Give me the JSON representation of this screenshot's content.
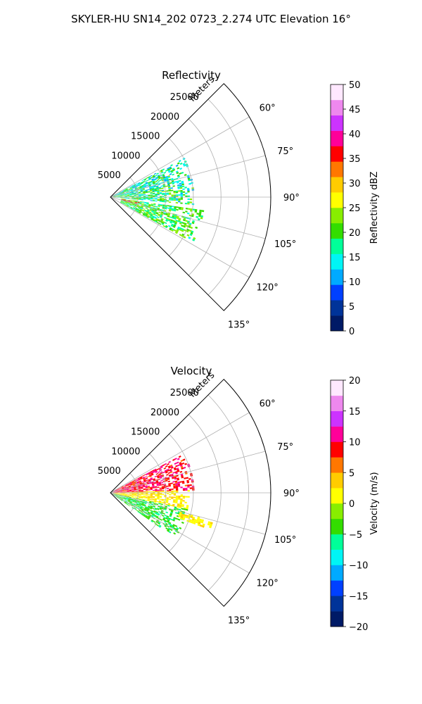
{
  "figure": {
    "suptitle": "SKYLER-HU  SN14_202  0723_2.274 UTC Elevation 16°"
  },
  "chart_data": [
    {
      "type": "heatmap",
      "subtype": "polar-sector-ppi",
      "title": "Reflectivity",
      "radial_axis_label": "Meters",
      "radial_ticks": [
        5000,
        10000,
        15000,
        20000,
        25000
      ],
      "radial_tick_labels": [
        "5000",
        "10000",
        "15000",
        "20000",
        "25000"
      ],
      "rmax": 29000,
      "theta_range_deg": [
        45,
        135
      ],
      "theta_ticks_deg": [
        60,
        75,
        90,
        105,
        120,
        135
      ],
      "theta_tick_labels": [
        "60°",
        "75°",
        "90°",
        "105°",
        "120°",
        "135°"
      ],
      "grid": true,
      "colorbar": {
        "label": "Reflectivity dBZ",
        "min": 0,
        "max": 50,
        "ticks": [
          0,
          5,
          10,
          15,
          20,
          25,
          30,
          35,
          40,
          45,
          50
        ],
        "tick_labels": [
          "0",
          "5",
          "10",
          "15",
          "20",
          "25",
          "30",
          "35",
          "40",
          "45",
          "50"
        ],
        "colormap": "NWS-reflectivity",
        "colors": [
          "#001a66",
          "#003399",
          "#0040ff",
          "#00aaff",
          "#00f5f5",
          "#00ff99",
          "#33dd00",
          "#88ee00",
          "#ffff00",
          "#ffcc00",
          "#ff7700",
          "#ff0000",
          "#ff0099",
          "#cc33ff",
          "#ee88ee",
          "#ffe8ff"
        ]
      },
      "field_summary": [
        {
          "sector_deg": [
            62,
            80
          ],
          "range_m": [
            500,
            15000
          ],
          "value_range": [
            10,
            22
          ]
        },
        {
          "sector_deg": [
            80,
            95
          ],
          "range_m": [
            500,
            15000
          ],
          "value_range": [
            12,
            25
          ]
        },
        {
          "sector_deg": [
            98,
            118
          ],
          "range_m": [
            2000,
            17000
          ],
          "value_range": [
            15,
            25
          ]
        },
        {
          "sector_deg": [
            100,
            104
          ],
          "range_m": [
            2000,
            5000
          ],
          "value_range": [
            33,
            38
          ]
        }
      ]
    },
    {
      "type": "heatmap",
      "subtype": "polar-sector-ppi",
      "title": "Velocity",
      "radial_axis_label": "Meters",
      "radial_ticks": [
        5000,
        10000,
        15000,
        20000,
        25000
      ],
      "radial_tick_labels": [
        "5000",
        "10000",
        "15000",
        "20000",
        "25000"
      ],
      "rmax": 29000,
      "theta_range_deg": [
        45,
        135
      ],
      "theta_ticks_deg": [
        60,
        75,
        90,
        105,
        120,
        135
      ],
      "theta_tick_labels": [
        "60°",
        "75°",
        "90°",
        "105°",
        "120°",
        "135°"
      ],
      "grid": true,
      "colorbar": {
        "label": "Velocity (m/s)",
        "min": -20,
        "max": 20,
        "ticks": [
          -20,
          -15,
          -10,
          -5,
          0,
          5,
          10,
          15,
          20
        ],
        "tick_labels": [
          "−20",
          "−15",
          "−10",
          "−5",
          "0",
          "5",
          "10",
          "15",
          "20"
        ],
        "colormap": "NWS-velocity",
        "colors": [
          "#001a66",
          "#003399",
          "#0040ff",
          "#00aaff",
          "#00f5f5",
          "#00ff99",
          "#33dd00",
          "#88ee00",
          "#ffff00",
          "#ffcc00",
          "#ff7700",
          "#ff0000",
          "#ff0099",
          "#cc33ff",
          "#ee88ee",
          "#ffe8ff"
        ]
      },
      "field_summary": [
        {
          "sector_deg": [
            62,
            88
          ],
          "range_m": [
            500,
            15000
          ],
          "value_range": [
            7,
            12
          ]
        },
        {
          "sector_deg": [
            88,
            102
          ],
          "range_m": [
            500,
            14000
          ],
          "value_range": [
            0,
            4
          ]
        },
        {
          "sector_deg": [
            102,
            124
          ],
          "range_m": [
            500,
            14000
          ],
          "value_range": [
            -6,
            -3
          ]
        },
        {
          "sector_deg": [
            105,
            110
          ],
          "range_m": [
            13000,
            19000
          ],
          "value_range": [
            0,
            3
          ]
        }
      ]
    }
  ]
}
